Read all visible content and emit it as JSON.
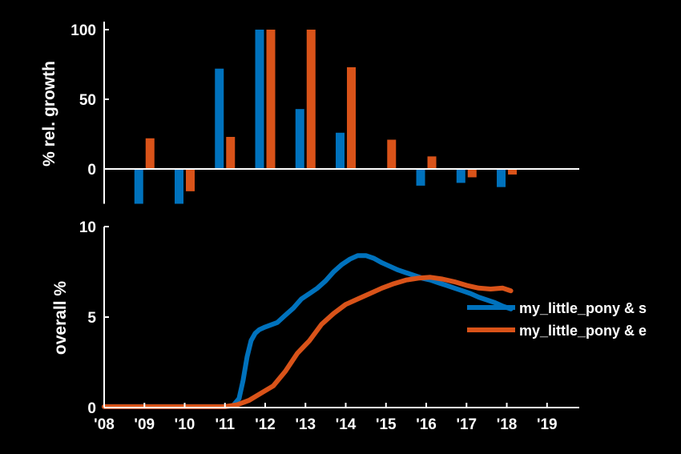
{
  "colors": {
    "background": "#000000",
    "axis": "#ffffff",
    "series_s": "#0072BD",
    "series_e": "#D95319"
  },
  "chart_data": [
    {
      "type": "bar",
      "ylabel": "% rel. growth",
      "ylim": [
        -25,
        100
      ],
      "yticks": [
        "0",
        "50",
        "100"
      ],
      "ytick_values": [
        0,
        50,
        100
      ],
      "categories": [
        "'08",
        "'09",
        "'10",
        "'11",
        "'12",
        "'13",
        "'14",
        "'15",
        "'16",
        "'17",
        "'18"
      ],
      "series": [
        {
          "color": "#0072BD",
          "values": [
            null,
            -25,
            -25,
            72,
            100,
            43,
            26,
            null,
            -12,
            -10,
            -13
          ]
        },
        {
          "color": "#D95319",
          "values": [
            null,
            22,
            -16,
            23,
            100,
            100,
            73,
            21,
            9,
            -6,
            -4
          ]
        }
      ],
      "xlim": [
        2008,
        2019.8
      ]
    },
    {
      "type": "line",
      "ylabel": "overall %",
      "ylim": [
        0,
        10
      ],
      "yticks": [
        "0",
        "5",
        "10"
      ],
      "ytick_values": [
        0,
        5,
        10
      ],
      "xlim": [
        2008,
        2019.8
      ],
      "xticks": [
        "'08",
        "'09",
        "'10",
        "'11",
        "'12",
        "'13",
        "'14",
        "'15",
        "'16",
        "'17",
        "'18",
        "'19"
      ],
      "xtick_values": [
        2008,
        2009,
        2010,
        2011,
        2012,
        2013,
        2014,
        2015,
        2016,
        2017,
        2018,
        2019
      ],
      "legend_position": "right",
      "series": [
        {
          "name": "my_little_pony & s",
          "color": "#0072BD",
          "x": [
            2008,
            2010,
            2011.0,
            2011.2,
            2011.35,
            2011.45,
            2011.55,
            2011.65,
            2011.75,
            2011.85,
            2012.0,
            2012.3,
            2012.5,
            2012.7,
            2012.9,
            2013.1,
            2013.3,
            2013.5,
            2013.7,
            2013.9,
            2014.1,
            2014.3,
            2014.5,
            2014.7,
            2014.9,
            2015.1,
            2015.3,
            2015.5,
            2015.7,
            2015.9,
            2016.1,
            2016.3,
            2016.5,
            2016.7,
            2016.9,
            2017.1,
            2017.3,
            2017.5,
            2017.7,
            2017.9,
            2018.1
          ],
          "y": [
            0.05,
            0.05,
            0.05,
            0.1,
            0.5,
            1.5,
            2.8,
            3.7,
            4.1,
            4.3,
            4.45,
            4.7,
            5.1,
            5.5,
            6.0,
            6.3,
            6.6,
            7.0,
            7.5,
            7.9,
            8.2,
            8.4,
            8.4,
            8.25,
            8.0,
            7.8,
            7.6,
            7.45,
            7.3,
            7.15,
            7.05,
            6.9,
            6.75,
            6.6,
            6.45,
            6.3,
            6.1,
            5.95,
            5.8,
            5.6,
            5.45
          ]
        },
        {
          "name": "my_little_pony & e",
          "color": "#D95319",
          "x": [
            2008,
            2010,
            2011.0,
            2011.3,
            2011.6,
            2011.9,
            2012.2,
            2012.5,
            2012.8,
            2013.1,
            2013.4,
            2013.7,
            2014.0,
            2014.3,
            2014.6,
            2014.9,
            2015.2,
            2015.5,
            2015.8,
            2016.1,
            2016.4,
            2016.7,
            2017.0,
            2017.3,
            2017.6,
            2017.9,
            2018.1
          ],
          "y": [
            0.05,
            0.05,
            0.05,
            0.15,
            0.4,
            0.8,
            1.2,
            2.0,
            3.0,
            3.7,
            4.6,
            5.2,
            5.7,
            6.0,
            6.3,
            6.6,
            6.85,
            7.05,
            7.15,
            7.2,
            7.1,
            6.95,
            6.75,
            6.6,
            6.55,
            6.6,
            6.45
          ]
        }
      ]
    }
  ]
}
